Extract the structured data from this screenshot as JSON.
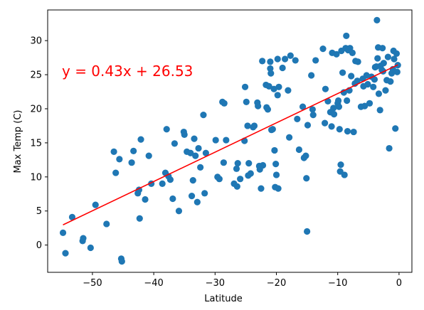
{
  "chart_data": {
    "type": "scatter",
    "title": "",
    "xlabel": "Latitude",
    "ylabel": "Max Temp (C)",
    "xlim": [
      -57.3,
      2.1
    ],
    "ylim": [
      -4.0,
      34.5
    ],
    "xticks": [
      -50,
      -40,
      -30,
      -20,
      -10,
      0
    ],
    "yticks": [
      0,
      5,
      10,
      15,
      20,
      25,
      30
    ],
    "xtick_labels": [
      "−50",
      "−40",
      "−30",
      "−20",
      "−10",
      "0"
    ],
    "ytick_labels": [
      "0",
      "5",
      "10",
      "15",
      "20",
      "25",
      "30"
    ],
    "grid": false,
    "point_color": "#1f77b4",
    "line_color": "#ff0000",
    "regression": {
      "slope": 0.43,
      "intercept": 26.53,
      "x_range": [
        -54.8,
        -0.2
      ],
      "label": "y = 0.43x + 26.53"
    },
    "points": [
      [
        -54.8,
        1.8
      ],
      [
        -54.4,
        -1.2
      ],
      [
        -53.3,
        4.1
      ],
      [
        -51.6,
        0.6
      ],
      [
        -51.5,
        1.0
      ],
      [
        -50.3,
        -0.4
      ],
      [
        -49.5,
        5.9
      ],
      [
        -47.7,
        3.1
      ],
      [
        -46.5,
        13.7
      ],
      [
        -46.2,
        10.6
      ],
      [
        -45.6,
        12.6
      ],
      [
        -45.3,
        -2.0
      ],
      [
        -45.2,
        -2.4
      ],
      [
        -43.6,
        12.1
      ],
      [
        -43.3,
        13.8
      ],
      [
        -42.6,
        7.6
      ],
      [
        -42.4,
        8.1
      ],
      [
        -42.1,
        15.5
      ],
      [
        -41.4,
        6.7
      ],
      [
        -40.8,
        13.1
      ],
      [
        -40.4,
        9.0
      ],
      [
        -42.3,
        3.9
      ],
      [
        -38.6,
        9.0
      ],
      [
        -38.1,
        10.6
      ],
      [
        -37.9,
        17.0
      ],
      [
        -37.6,
        10.1
      ],
      [
        -37.3,
        9.6
      ],
      [
        -36.9,
        6.8
      ],
      [
        -36.6,
        14.9
      ],
      [
        -35.9,
        5.0
      ],
      [
        -35.1,
        16.6
      ],
      [
        -35.0,
        16.2
      ],
      [
        -34.6,
        13.7
      ],
      [
        -34.0,
        13.5
      ],
      [
        -33.8,
        7.2
      ],
      [
        -33.6,
        9.5
      ],
      [
        -33.4,
        15.6
      ],
      [
        -33.2,
        13.1
      ],
      [
        -32.9,
        6.3
      ],
      [
        -32.7,
        14.2
      ],
      [
        -32.4,
        11.4
      ],
      [
        -31.9,
        19.1
      ],
      [
        -31.7,
        7.6
      ],
      [
        -31.5,
        13.5
      ],
      [
        -29.9,
        15.4
      ],
      [
        -29.6,
        10.0
      ],
      [
        -29.3,
        9.7
      ],
      [
        -28.8,
        21.0
      ],
      [
        -28.6,
        12.1
      ],
      [
        -28.5,
        20.8
      ],
      [
        -28.2,
        15.4
      ],
      [
        -26.9,
        9.0
      ],
      [
        -26.5,
        11.2
      ],
      [
        -26.4,
        8.6
      ],
      [
        -26.3,
        12.0
      ],
      [
        -25.9,
        9.7
      ],
      [
        -25.2,
        15.3
      ],
      [
        -25.1,
        23.2
      ],
      [
        -24.9,
        21.0
      ],
      [
        -24.7,
        17.5
      ],
      [
        -24.6,
        10.2
      ],
      [
        -24.5,
        12.0
      ],
      [
        -24.2,
        10.5
      ],
      [
        -23.8,
        17.3
      ],
      [
        -23.6,
        17.5
      ],
      [
        -23.1,
        20.9
      ],
      [
        -23.0,
        20.4
      ],
      [
        -22.8,
        11.6
      ],
      [
        -22.7,
        11.1
      ],
      [
        -22.5,
        8.3
      ],
      [
        -22.3,
        27.0
      ],
      [
        -22.2,
        11.7
      ],
      [
        -21.7,
        23.5
      ],
      [
        -21.6,
        20.2
      ],
      [
        -21.4,
        19.9
      ],
      [
        -21.2,
        23.3
      ],
      [
        -21.0,
        26.9
      ],
      [
        -21.0,
        25.9
      ],
      [
        -20.9,
        25.2
      ],
      [
        -20.8,
        16.9
      ],
      [
        -20.6,
        17.0
      ],
      [
        -20.4,
        22.9
      ],
      [
        -20.3,
        13.9
      ],
      [
        -20.2,
        8.5
      ],
      [
        -20.1,
        11.9
      ],
      [
        -20.0,
        10.3
      ],
      [
        -19.8,
        22.0
      ],
      [
        -19.8,
        27.3
      ],
      [
        -19.7,
        8.3
      ],
      [
        -19.6,
        23.2
      ],
      [
        -19.0,
        26.0
      ],
      [
        -18.6,
        27.3
      ],
      [
        -18.1,
        22.7
      ],
      [
        -17.9,
        15.8
      ],
      [
        -17.7,
        27.8
      ],
      [
        -16.9,
        27.1
      ],
      [
        -16.6,
        18.5
      ],
      [
        -16.3,
        14.0
      ],
      [
        -15.7,
        20.3
      ],
      [
        -15.5,
        12.8
      ],
      [
        -15.2,
        13.1
      ],
      [
        -15.1,
        9.8
      ],
      [
        -15.0,
        2.0
      ],
      [
        -14.9,
        17.6
      ],
      [
        -14.3,
        24.9
      ],
      [
        -14.1,
        19.9
      ],
      [
        -14.0,
        19.1
      ],
      [
        -13.6,
        27.1
      ],
      [
        -12.4,
        28.8
      ],
      [
        -12.1,
        17.9
      ],
      [
        -12.0,
        22.9
      ],
      [
        -11.6,
        21.1
      ],
      [
        -11.2,
        19.5
      ],
      [
        -11.0,
        17.4
      ],
      [
        -10.9,
        28.2
      ],
      [
        -10.7,
        20.1
      ],
      [
        -10.6,
        19.2
      ],
      [
        -10.2,
        28.0
      ],
      [
        -10.0,
        20.8
      ],
      [
        -9.9,
        21.2
      ],
      [
        -9.8,
        20.3
      ],
      [
        -9.7,
        17.0
      ],
      [
        -9.6,
        10.8
      ],
      [
        -9.5,
        11.8
      ],
      [
        -9.4,
        28.5
      ],
      [
        -9.2,
        25.3
      ],
      [
        -9.0,
        22.4
      ],
      [
        -8.9,
        10.3
      ],
      [
        -8.7,
        28.9
      ],
      [
        -8.6,
        30.7
      ],
      [
        -8.5,
        21.2
      ],
      [
        -8.4,
        16.7
      ],
      [
        -8.3,
        28.6
      ],
      [
        -8.1,
        22.7
      ],
      [
        -8.0,
        28.9
      ],
      [
        -7.8,
        24.8
      ],
      [
        -7.6,
        28.2
      ],
      [
        -7.4,
        16.6
      ],
      [
        -7.2,
        23.7
      ],
      [
        -7.1,
        27.0
      ],
      [
        -6.8,
        24.1
      ],
      [
        -6.7,
        26.9
      ],
      [
        -6.2,
        20.3
      ],
      [
        -5.9,
        24.4
      ],
      [
        -5.8,
        23.3
      ],
      [
        -5.6,
        20.4
      ],
      [
        -5.3,
        24.9
      ],
      [
        -5.1,
        23.6
      ],
      [
        -4.8,
        20.8
      ],
      [
        -4.5,
        24.7
      ],
      [
        -4.2,
        23.2
      ],
      [
        -4.0,
        24.3
      ],
      [
        -3.9,
        26.1
      ],
      [
        -3.7,
        26.2
      ],
      [
        -3.6,
        33.0
      ],
      [
        -3.5,
        27.4
      ],
      [
        -3.4,
        29.0
      ],
      [
        -3.3,
        22.2
      ],
      [
        -3.1,
        19.8
      ],
      [
        -3.0,
        26.3
      ],
      [
        -2.8,
        25.7
      ],
      [
        -2.7,
        28.9
      ],
      [
        -2.6,
        25.5
      ],
      [
        -2.5,
        26.7
      ],
      [
        -2.2,
        22.7
      ],
      [
        -2.0,
        24.2
      ],
      [
        -1.8,
        27.6
      ],
      [
        -1.6,
        14.2
      ],
      [
        -1.4,
        24.0
      ],
      [
        -1.2,
        25.2
      ],
      [
        -1.0,
        25.8
      ],
      [
        -0.9,
        28.5
      ],
      [
        -0.8,
        27.3
      ],
      [
        -0.6,
        17.1
      ],
      [
        -0.4,
        28.1
      ],
      [
        -0.3,
        25.4
      ],
      [
        -0.2,
        26.4
      ]
    ]
  }
}
